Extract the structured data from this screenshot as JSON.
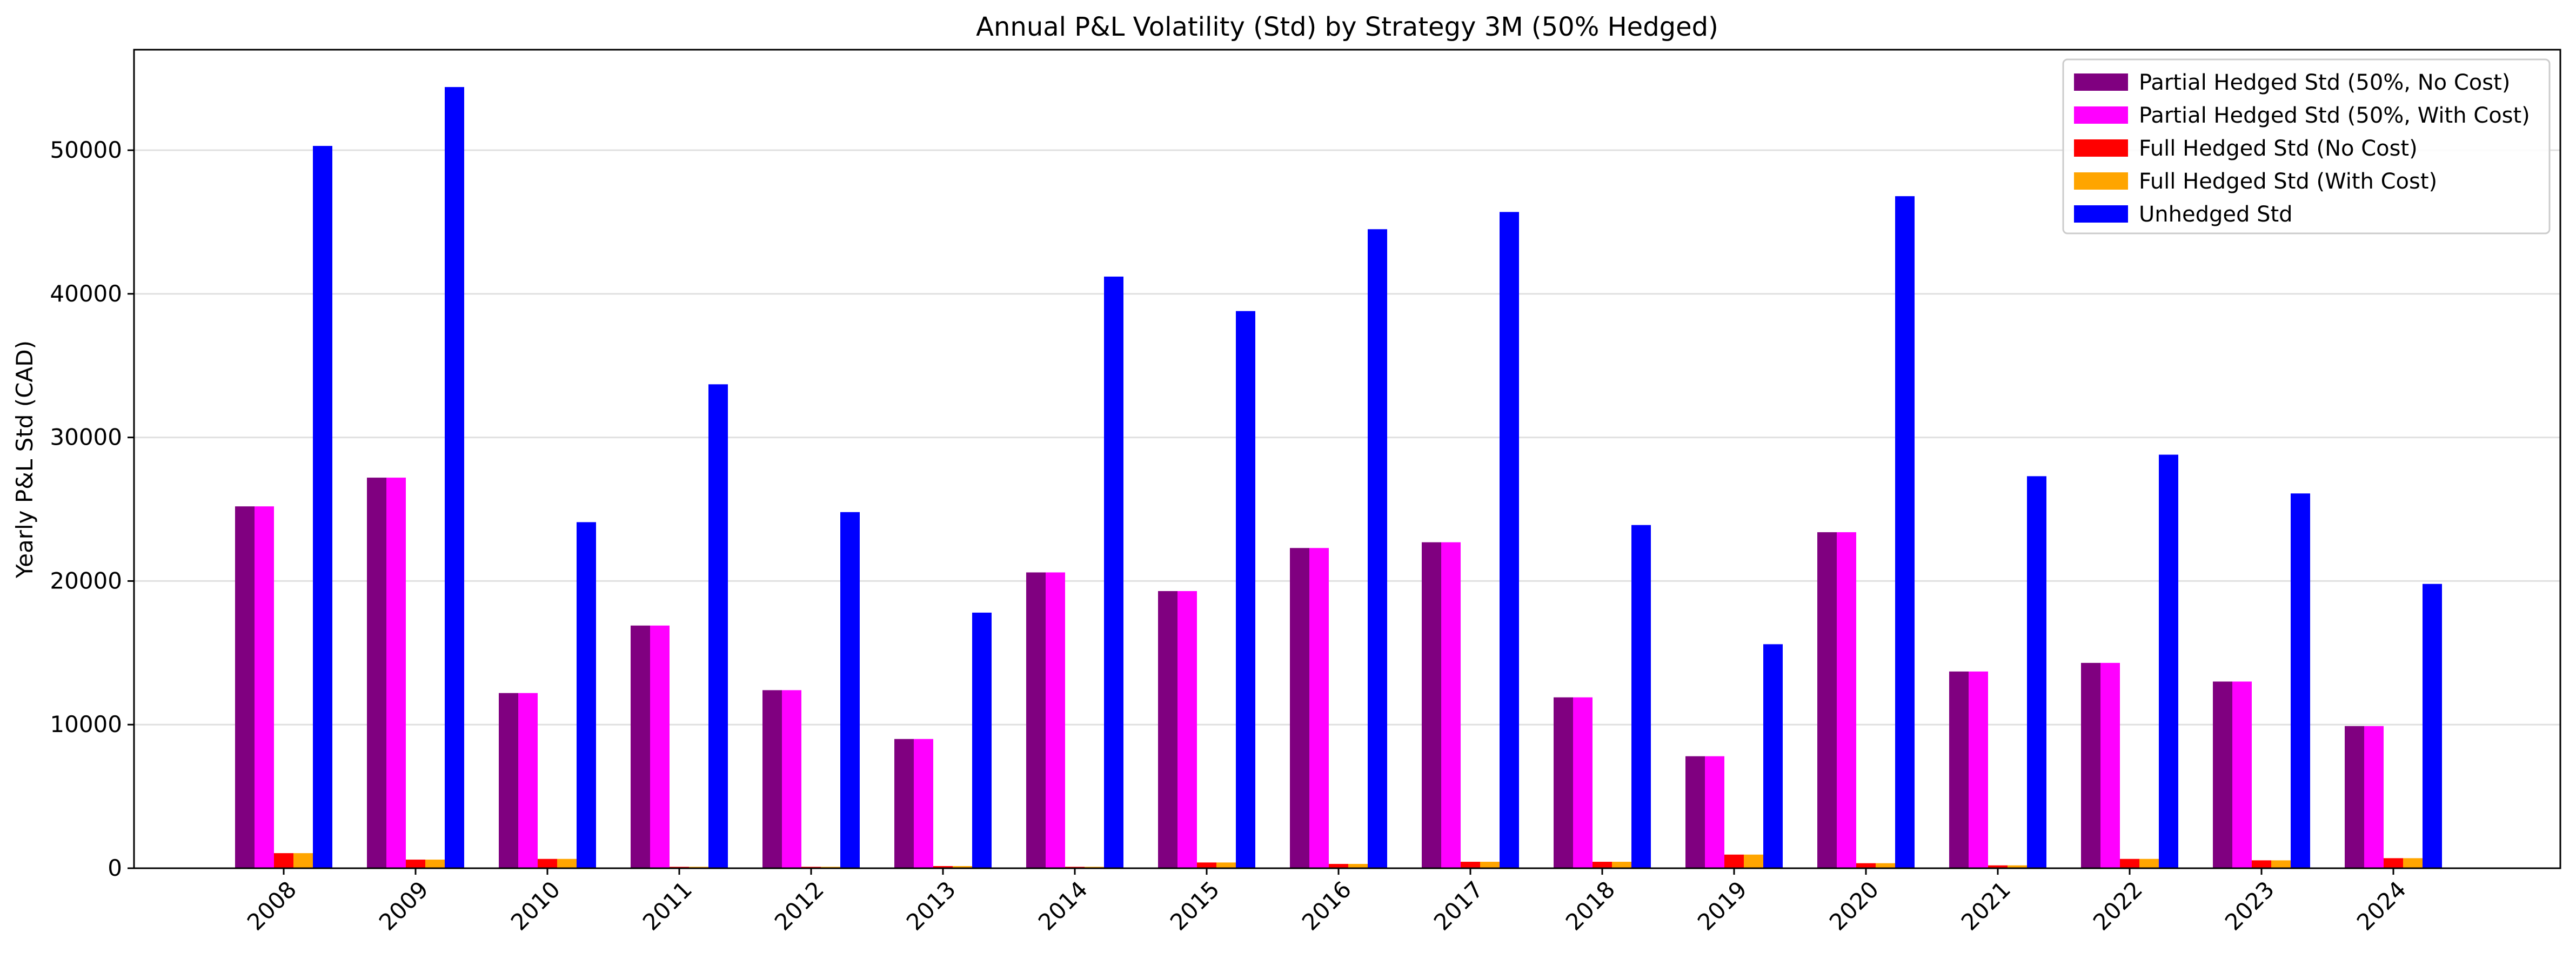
{
  "chart_data": {
    "type": "bar",
    "title": "Annual P&L Volatility (Std) by Strategy 3M (50% Hedged)",
    "xlabel": "",
    "ylabel": "Yearly P&L Std (CAD)",
    "categories": [
      "2008",
      "2009",
      "2010",
      "2011",
      "2012",
      "2013",
      "2014",
      "2015",
      "2016",
      "2017",
      "2018",
      "2019",
      "2020",
      "2021",
      "2022",
      "2023",
      "2024"
    ],
    "ylim": [
      0,
      57000
    ],
    "yticks": [
      0,
      10000,
      20000,
      30000,
      40000,
      50000
    ],
    "grid": "y",
    "legend_position": "top-right",
    "series": [
      {
        "name": "Partial Hedged Std (50%, No Cost)",
        "color": "#800080",
        "values": [
          25200,
          27200,
          12200,
          16900,
          12400,
          9000,
          20600,
          19300,
          22300,
          22700,
          11900,
          7800,
          23400,
          13700,
          14300,
          13000,
          9900
        ]
      },
      {
        "name": "Partial Hedged Std (50%, With Cost)",
        "color": "#ff00ff",
        "values": [
          25200,
          27200,
          12200,
          16900,
          12400,
          9000,
          20600,
          19300,
          22300,
          22700,
          11900,
          7800,
          23400,
          13700,
          14300,
          13000,
          9900
        ]
      },
      {
        "name": "Full Hedged Std (No Cost)",
        "color": "#ff0000",
        "values": [
          1050,
          600,
          650,
          100,
          100,
          150,
          100,
          400,
          300,
          450,
          450,
          950,
          350,
          200,
          650,
          550,
          700
        ]
      },
      {
        "name": "Full Hedged Std (With Cost)",
        "color": "#ffa500",
        "values": [
          1050,
          600,
          650,
          100,
          100,
          150,
          100,
          400,
          300,
          450,
          450,
          950,
          350,
          200,
          650,
          550,
          700
        ]
      },
      {
        "name": "Unhedged Std",
        "color": "#0000ff",
        "values": [
          50300,
          54400,
          24100,
          33700,
          24800,
          17800,
          41200,
          38800,
          44500,
          45700,
          23900,
          15600,
          46800,
          27300,
          28800,
          26100,
          19800
        ]
      }
    ]
  }
}
